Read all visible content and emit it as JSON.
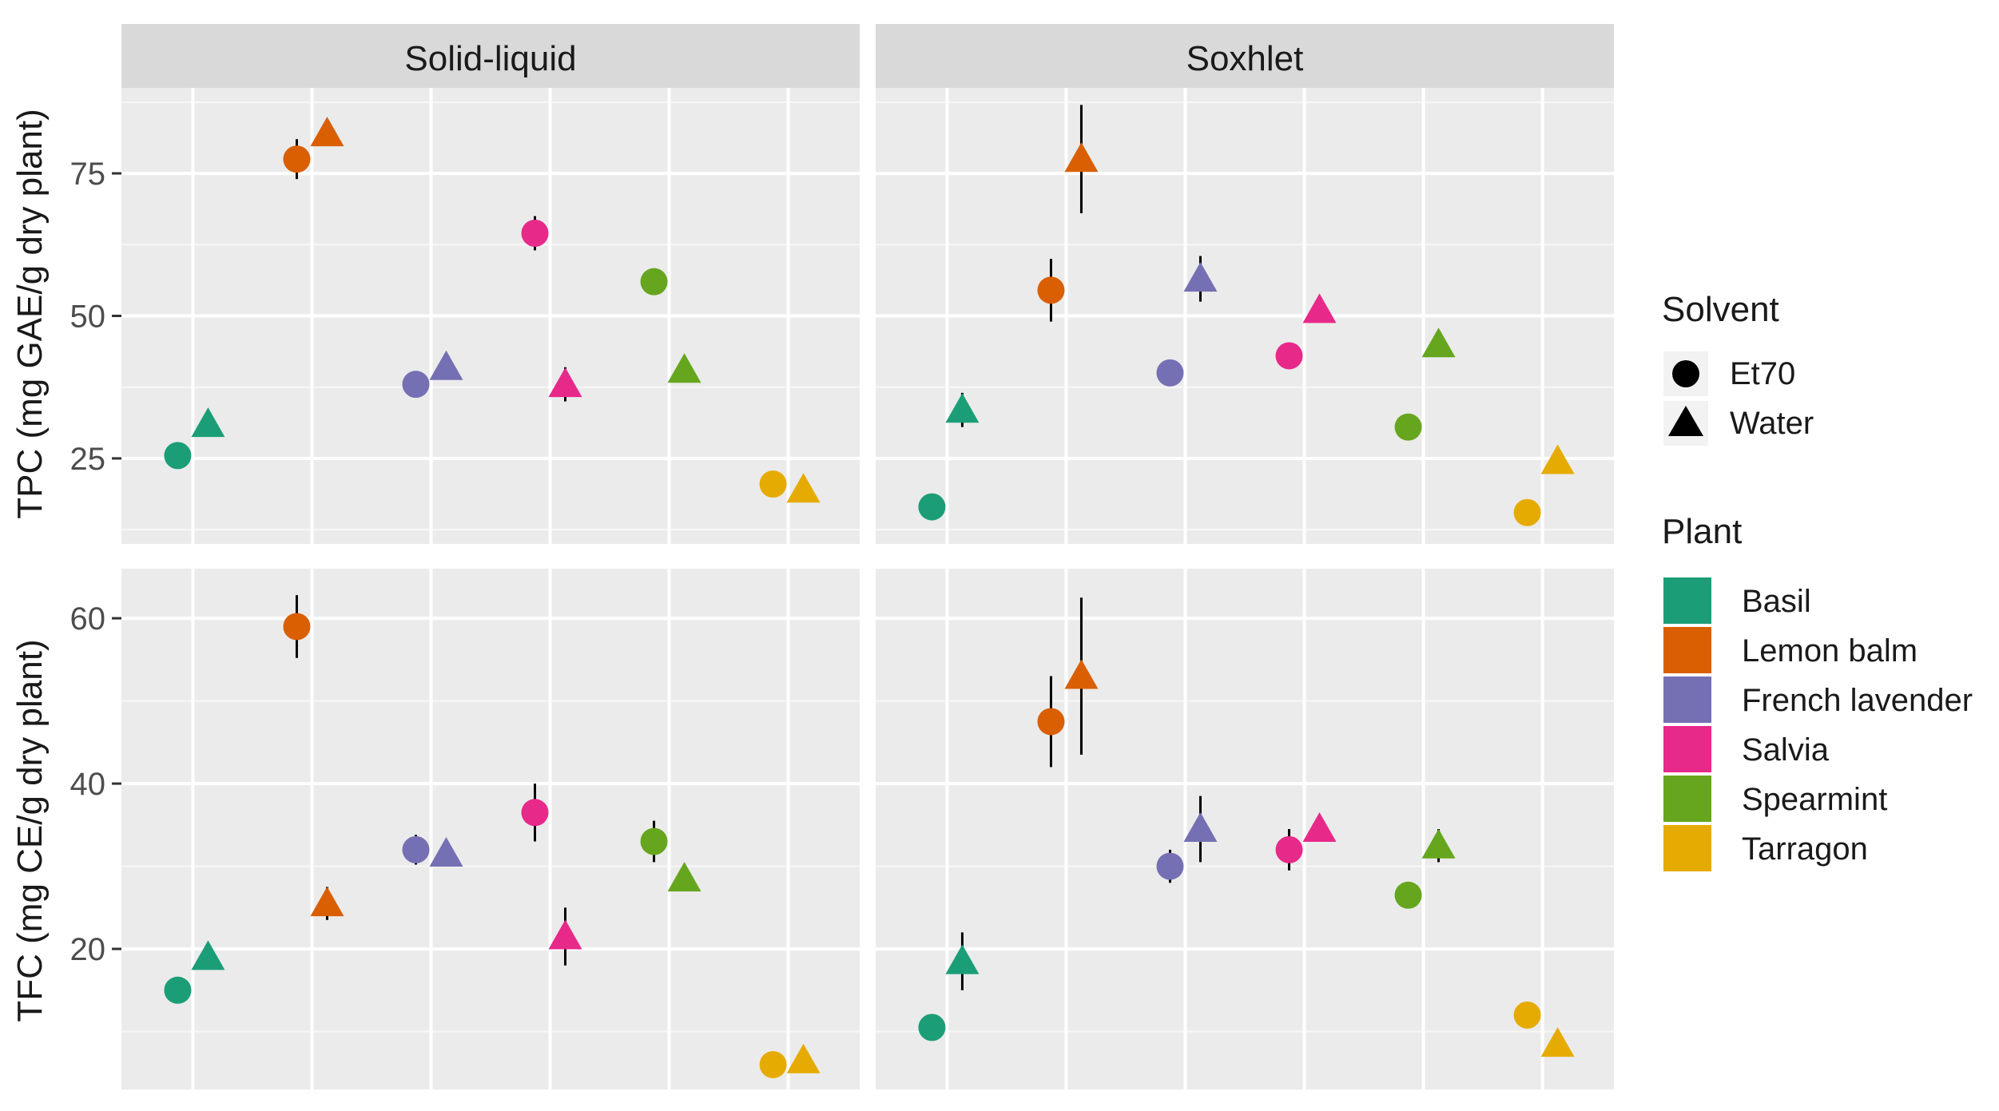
{
  "chart_data": {
    "type": "scatter",
    "facets": {
      "columns": [
        "Solid-liquid",
        "Soxhlet"
      ],
      "rows": [
        {
          "ylabel": "TPC (mg GAE/g dry plant)",
          "ylim": [
            10,
            90
          ],
          "yticks": [
            25,
            50,
            75
          ]
        },
        {
          "ylabel": "TFC (mg CE/g dry plant)",
          "ylim": [
            3,
            66
          ],
          "yticks": [
            20,
            40,
            60
          ]
        }
      ]
    },
    "categories": [
      "Basil",
      "Lemon balm",
      "French lavender",
      "Salvia",
      "Spearmint",
      "Tarragon"
    ],
    "solvents": [
      "Et70",
      "Water"
    ],
    "legend": {
      "solvent_title": "Solvent",
      "solvent_items": [
        {
          "label": "Et70",
          "shape": "circle"
        },
        {
          "label": "Water",
          "shape": "triangle"
        }
      ],
      "plant_title": "Plant",
      "plant_items": [
        {
          "label": "Basil",
          "color": "#1b9e77"
        },
        {
          "label": "Lemon balm",
          "color": "#d95f02"
        },
        {
          "label": "French lavender",
          "color": "#7570b3"
        },
        {
          "label": "Salvia",
          "color": "#e7298a"
        },
        {
          "label": "Spearmint",
          "color": "#66a61e"
        },
        {
          "label": "Tarragon",
          "color": "#e6ab02"
        }
      ],
      "position": "right"
    },
    "series": [
      {
        "metric": "TPC",
        "method": "Solid-liquid",
        "solvent": "Et70",
        "values": [
          25.5,
          77.5,
          38.0,
          64.5,
          56.0,
          20.5
        ],
        "errors": [
          0,
          3.5,
          0,
          3,
          0,
          0
        ]
      },
      {
        "metric": "TPC",
        "method": "Solid-liquid",
        "solvent": "Water",
        "values": [
          31.0,
          82.0,
          41.0,
          38.0,
          40.5,
          19.5
        ],
        "errors": [
          0,
          1.5,
          0,
          3,
          0,
          0
        ]
      },
      {
        "metric": "TPC",
        "method": "Soxhlet",
        "solvent": "Et70",
        "values": [
          16.5,
          54.5,
          40.0,
          43.0,
          30.5,
          15.5
        ],
        "errors": [
          0,
          5.5,
          0,
          0,
          0,
          0
        ]
      },
      {
        "metric": "TPC",
        "method": "Soxhlet",
        "solvent": "Water",
        "values": [
          33.5,
          77.5,
          56.5,
          51.0,
          45.0,
          24.5
        ],
        "errors": [
          3,
          9.5,
          4,
          0,
          1.5,
          0
        ]
      },
      {
        "metric": "TFC",
        "method": "Solid-liquid",
        "solvent": "Et70",
        "values": [
          15.0,
          59.0,
          32.0,
          36.5,
          33.0,
          6.0
        ],
        "errors": [
          0,
          3.8,
          1.8,
          3.5,
          2.5,
          0
        ]
      },
      {
        "metric": "TFC",
        "method": "Solid-liquid",
        "solvent": "Water",
        "values": [
          19.0,
          25.5,
          31.5,
          21.5,
          28.5,
          6.5
        ],
        "errors": [
          0,
          2,
          0,
          3.5,
          1.5,
          0
        ]
      },
      {
        "metric": "TFC",
        "method": "Soxhlet",
        "solvent": "Et70",
        "values": [
          10.5,
          47.5,
          30.0,
          32.0,
          26.5,
          12.0
        ],
        "errors": [
          0,
          5.5,
          2,
          2.5,
          0,
          0
        ]
      },
      {
        "metric": "TFC",
        "method": "Soxhlet",
        "solvent": "Water",
        "values": [
          18.5,
          53.0,
          34.5,
          34.5,
          32.5,
          8.5
        ],
        "errors": [
          3.5,
          9.5,
          4,
          0,
          2,
          0
        ]
      }
    ]
  }
}
